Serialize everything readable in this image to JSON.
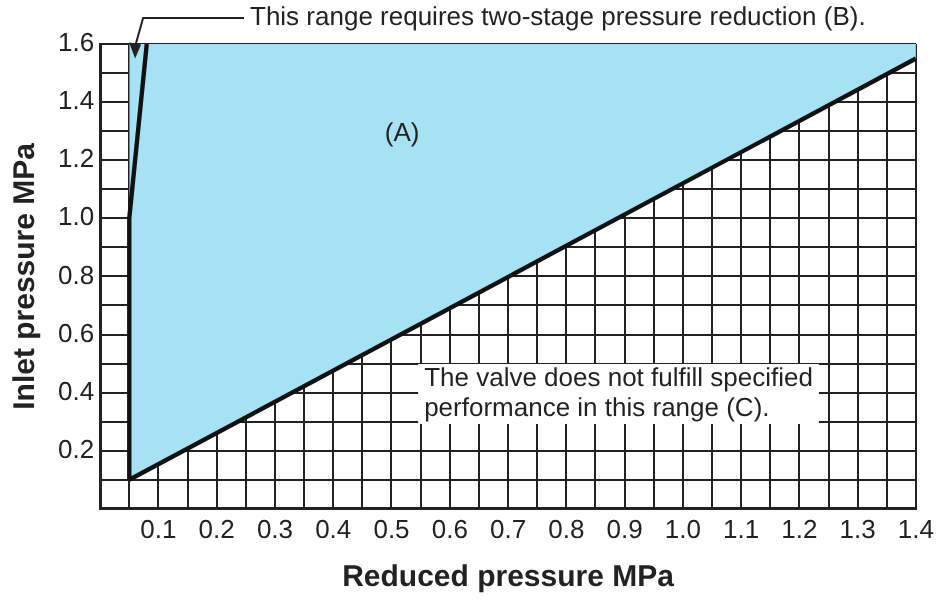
{
  "chart_data": {
    "type": "line",
    "xlabel": "Reduced pressure MPa",
    "ylabel": "Inlet pressure MPa",
    "series": [
      {
        "color": "#111111",
        "x": [
          0.05,
          1.4
        ],
        "values": [
          0.1,
          1.55
        ],
        "lower": [
          0.1,
          1.55
        ],
        "upper": [
          1.6,
          1.6
        ]
      },
      {
        "color": "#111111",
        "x": [
          0.05,
          0.05,
          0.08
        ],
        "values": [
          0.1,
          1.0,
          1.6
        ]
      }
    ],
    "xlim": [
      0,
      1.4
    ],
    "ylim": [
      0,
      1.6
    ],
    "xticks": [
      {
        "value": 0,
        "label": null
      },
      {
        "value": 0.05,
        "label": null
      },
      0.1,
      {
        "value": 0.15,
        "label": null
      },
      0.2,
      {
        "value": 0.25,
        "label": null
      },
      0.3,
      {
        "value": 0.35,
        "label": null
      },
      0.4,
      {
        "value": 0.45,
        "label": null
      },
      0.5,
      {
        "value": 0.55,
        "label": null
      },
      0.6,
      {
        "value": 0.65,
        "label": null
      },
      0.7,
      {
        "value": 0.75,
        "label": null
      },
      0.8,
      {
        "value": 0.85,
        "label": null
      },
      0.9,
      {
        "value": 0.95,
        "label": null
      },
      {
        "value": 1,
        "label": "1.0"
      },
      {
        "value": 1.05,
        "label": null
      },
      1.1,
      {
        "value": 1.15,
        "label": null
      },
      1.2,
      {
        "value": 1.25,
        "label": null
      },
      1.3,
      {
        "value": 1.35,
        "label": null
      },
      1.4
    ],
    "yticks": [
      {
        "value": 0,
        "label": null
      },
      {
        "value": 0.1,
        "label": null
      },
      0.2,
      {
        "value": 0.3,
        "label": null
      },
      0.4,
      {
        "value": 0.5,
        "label": null
      },
      0.6,
      {
        "value": 0.7,
        "label": null
      },
      0.8,
      {
        "value": 0.9,
        "label": null
      },
      {
        "value": 1,
        "label": "1.0"
      },
      {
        "value": 1.1,
        "label": null
      },
      1.2,
      {
        "value": 1.3,
        "label": null
      },
      1.4,
      {
        "value": 1.5,
        "label": null
      },
      1.6
    ],
    "grid": true,
    "legend": false,
    "annotations": [
      {
        "text": "This range requires two-stage pressure reduction (B).",
        "x": 0.06,
        "y": 1.55
      },
      "(A)",
      "The valve does not fulfill specified\nperformance in this range (C)."
    ]
  }
}
